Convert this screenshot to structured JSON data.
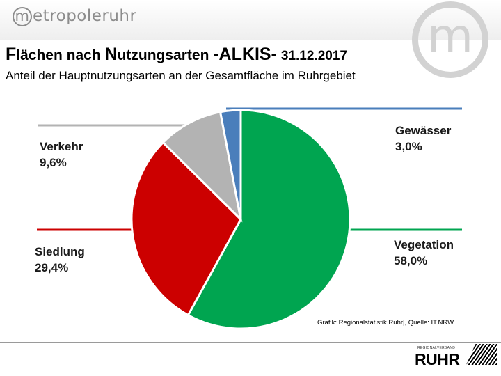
{
  "header": {
    "logo_text": "etropoleruhr",
    "logo_letter": "m",
    "brand_mark_letter": "m"
  },
  "title": {
    "part1_cap": "F",
    "part1_rest": "lächen nach ",
    "part2_cap": "N",
    "part2_rest": "utzungsarten ",
    "part3": "-ALKIS-",
    "date": "31.12.2017"
  },
  "subtitle": "Anteil der Hauptnutzungsarten an der Gesamtfläche im Ruhrgebiet",
  "chart_data": {
    "type": "pie",
    "title": "Flächen nach Nutzungsarten -ALKIS- 31.12.2017",
    "subtitle": "Anteil der Hauptnutzungsarten an der Gesamtfläche im Ruhrgebiet",
    "unit": "%",
    "slices": [
      {
        "label": "Vegetation",
        "value": 58.0,
        "display": "58,0%",
        "color": "#00a550"
      },
      {
        "label": "Siedlung",
        "value": 29.4,
        "display": "29,4%",
        "color": "#cc0000"
      },
      {
        "label": "Verkehr",
        "value": 9.6,
        "display": "9,6%",
        "color": "#b3b3b3"
      },
      {
        "label": "Gewässer",
        "value": 3.0,
        "display": "3,0%",
        "color": "#4a7ebb"
      }
    ],
    "start": "12 o'clock",
    "direction": "clockwise"
  },
  "source": "Grafik: Regionalstatistik Ruhr|, Quelle: IT.NRW",
  "footer": {
    "logo_small_text": "REGIONALVERBAND",
    "logo_text": "RUHR"
  }
}
